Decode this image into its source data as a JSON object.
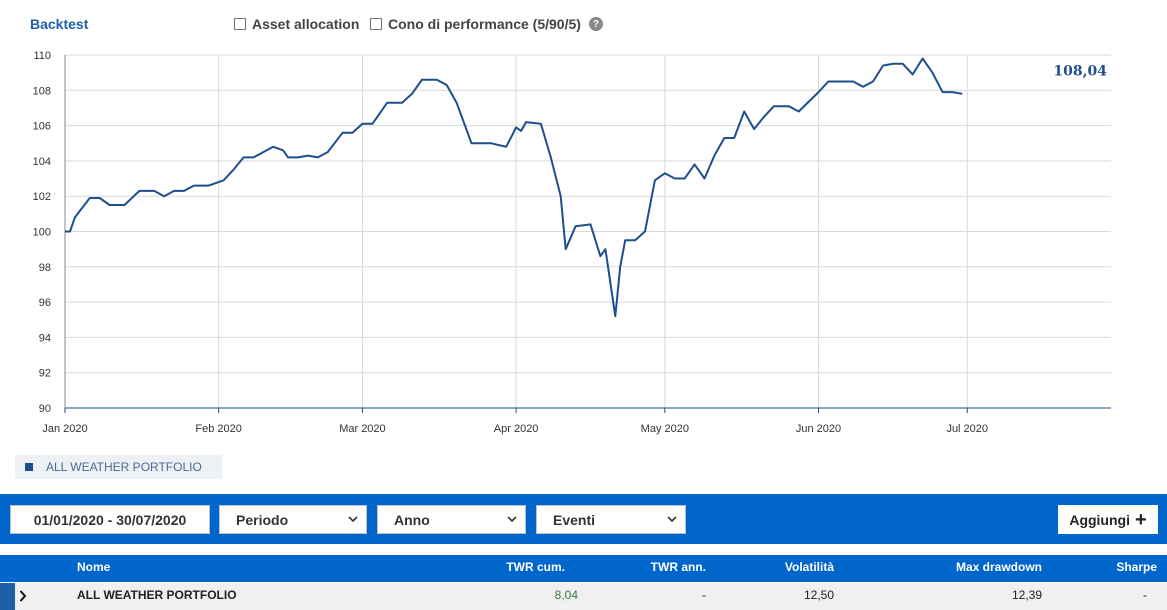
{
  "header": {
    "title": "Backtest",
    "options": [
      {
        "label": "Asset allocation",
        "checked": false
      },
      {
        "label": "Cono di performance (5/90/5)",
        "checked": false
      }
    ],
    "help_icon": "question-circle-icon"
  },
  "chart_data": {
    "type": "line",
    "ylim": [
      90,
      110
    ],
    "yticks": [
      "90",
      "92",
      "94",
      "96",
      "98",
      "100",
      "102",
      "104",
      "106",
      "108",
      "110"
    ],
    "xticks": [
      "Jan 2020",
      "Feb 2020",
      "Mar 2020",
      "Apr 2020",
      "May 2020",
      "Jun 2020",
      "Jul 2020"
    ],
    "x_range": [
      "2020-01-01",
      "2020-07-30"
    ],
    "grid": true,
    "last_value_label": "108,04",
    "series": [
      {
        "name": "ALL WEATHER PORTFOLIO",
        "color": "#1f4e8c",
        "points": [
          [
            "2020-01-01",
            100.0
          ],
          [
            "2020-01-02",
            100.0
          ],
          [
            "2020-01-03",
            100.8
          ],
          [
            "2020-01-06",
            101.9
          ],
          [
            "2020-01-08",
            101.9
          ],
          [
            "2020-01-10",
            101.5
          ],
          [
            "2020-01-13",
            101.5
          ],
          [
            "2020-01-16",
            102.3
          ],
          [
            "2020-01-19",
            102.3
          ],
          [
            "2020-01-21",
            102.0
          ],
          [
            "2020-01-23",
            102.3
          ],
          [
            "2020-01-25",
            102.3
          ],
          [
            "2020-01-27",
            102.6
          ],
          [
            "2020-01-30",
            102.6
          ],
          [
            "2020-02-02",
            102.9
          ],
          [
            "2020-02-04",
            103.5
          ],
          [
            "2020-02-06",
            104.2
          ],
          [
            "2020-02-08",
            104.2
          ],
          [
            "2020-02-10",
            104.5
          ],
          [
            "2020-02-12",
            104.8
          ],
          [
            "2020-02-14",
            104.6
          ],
          [
            "2020-02-15",
            104.2
          ],
          [
            "2020-02-17",
            104.2
          ],
          [
            "2020-02-19",
            104.3
          ],
          [
            "2020-02-21",
            104.2
          ],
          [
            "2020-02-23",
            104.5
          ],
          [
            "2020-02-26",
            105.6
          ],
          [
            "2020-02-28",
            105.6
          ],
          [
            "2020-03-01",
            106.1
          ],
          [
            "2020-03-03",
            106.1
          ],
          [
            "2020-03-06",
            107.3
          ],
          [
            "2020-03-09",
            107.3
          ],
          [
            "2020-03-11",
            107.8
          ],
          [
            "2020-03-13",
            108.6
          ],
          [
            "2020-03-16",
            108.6
          ],
          [
            "2020-03-18",
            108.3
          ],
          [
            "2020-03-20",
            107.3
          ],
          [
            "2020-03-23",
            105.0
          ],
          [
            "2020-03-25",
            105.0
          ],
          [
            "2020-03-27",
            105.0
          ],
          [
            "2020-03-30",
            104.8
          ],
          [
            "2020-04-01",
            105.9
          ],
          [
            "2020-04-02",
            105.7
          ],
          [
            "2020-04-03",
            106.2
          ],
          [
            "2020-04-06",
            106.1
          ],
          [
            "2020-04-08",
            104.2
          ],
          [
            "2020-04-10",
            102.0
          ],
          [
            "2020-04-11",
            99.0
          ],
          [
            "2020-04-13",
            100.3
          ],
          [
            "2020-04-16",
            100.4
          ],
          [
            "2020-04-18",
            98.6
          ],
          [
            "2020-04-19",
            99.0
          ],
          [
            "2020-04-21",
            95.2
          ],
          [
            "2020-04-22",
            98.0
          ],
          [
            "2020-04-23",
            99.5
          ],
          [
            "2020-04-25",
            99.5
          ],
          [
            "2020-04-27",
            100.0
          ],
          [
            "2020-04-29",
            102.9
          ],
          [
            "2020-05-01",
            103.3
          ],
          [
            "2020-05-03",
            103.0
          ],
          [
            "2020-05-05",
            103.0
          ],
          [
            "2020-05-07",
            103.8
          ],
          [
            "2020-05-09",
            103.0
          ],
          [
            "2020-05-11",
            104.3
          ],
          [
            "2020-05-13",
            105.3
          ],
          [
            "2020-05-15",
            105.3
          ],
          [
            "2020-05-17",
            106.8
          ],
          [
            "2020-05-19",
            105.8
          ],
          [
            "2020-05-21",
            106.5
          ],
          [
            "2020-05-23",
            107.1
          ],
          [
            "2020-05-26",
            107.1
          ],
          [
            "2020-05-28",
            106.8
          ],
          [
            "2020-06-01",
            107.9
          ],
          [
            "2020-06-03",
            108.5
          ],
          [
            "2020-06-06",
            108.5
          ],
          [
            "2020-06-08",
            108.5
          ],
          [
            "2020-06-10",
            108.2
          ],
          [
            "2020-06-12",
            108.5
          ],
          [
            "2020-06-14",
            109.4
          ],
          [
            "2020-06-16",
            109.5
          ],
          [
            "2020-06-18",
            109.5
          ],
          [
            "2020-06-20",
            108.9
          ],
          [
            "2020-06-22",
            109.8
          ],
          [
            "2020-06-24",
            109.0
          ],
          [
            "2020-06-26",
            107.9
          ],
          [
            "2020-06-28",
            107.9
          ],
          [
            "2020-06-30",
            107.8
          ]
        ]
      }
    ]
  },
  "legend": {
    "label": "ALL WEATHER PORTFOLIO",
    "color": "#1f4e8c"
  },
  "toolbar": {
    "date_range": "01/01/2020 - 30/07/2020",
    "selects": [
      {
        "name": "periodo",
        "label": "Periodo"
      },
      {
        "name": "anno",
        "label": "Anno"
      },
      {
        "name": "eventi",
        "label": "Eventi"
      }
    ],
    "add_label": "Aggiungi"
  },
  "table": {
    "headers": {
      "nome": "Nome",
      "twr_cum": "TWR cum.",
      "twr_ann": "TWR ann.",
      "volatilita": "Volatilità",
      "max_drawdown": "Max drawdown",
      "sharpe": "Sharpe"
    },
    "rows": [
      {
        "nome": "ALL WEATHER PORTFOLIO",
        "twr_cum": "8,04",
        "twr_ann": "-",
        "volatilita": "12,50",
        "max_drawdown": "12,39",
        "sharpe": "-"
      }
    ]
  },
  "colors": {
    "accent": "#0066cc",
    "line": "#1f4e8c",
    "title": "#1f5fa8"
  }
}
